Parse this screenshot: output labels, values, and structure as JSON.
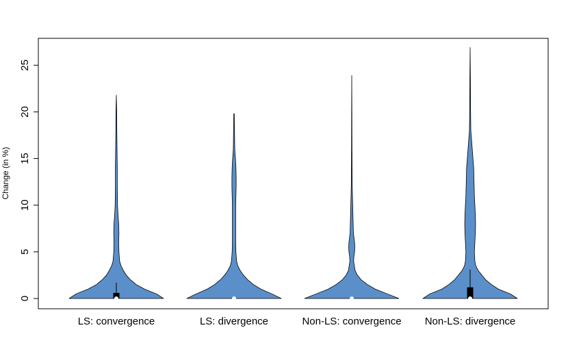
{
  "chart_data": {
    "type": "violin",
    "ylabel": "Change (in %)",
    "ylim": [
      -1,
      28
    ],
    "yticks": [
      "0",
      "5",
      "10",
      "15",
      "20",
      "25"
    ],
    "categories": [
      "LS: convergence",
      "LS: divergence",
      "Non-LS: convergence",
      "Non-LS: divergence"
    ],
    "fill_color": "#5b8fc9",
    "series": [
      {
        "category": "LS: convergence",
        "max": 21.8,
        "median": 0,
        "q1": 0,
        "q3": 0.6,
        "whisker_high": 1.7,
        "density": [
          [
            0,
            1
          ],
          [
            0.5,
            0.85
          ],
          [
            1,
            0.6
          ],
          [
            1.5,
            0.42
          ],
          [
            2,
            0.3
          ],
          [
            2.5,
            0.21
          ],
          [
            3,
            0.15
          ],
          [
            3.5,
            0.1
          ],
          [
            4,
            0.07
          ],
          [
            5,
            0.055
          ],
          [
            6,
            0.05
          ],
          [
            7,
            0.055
          ],
          [
            8,
            0.05
          ],
          [
            9,
            0.035
          ],
          [
            10,
            0.025
          ],
          [
            12,
            0.02
          ],
          [
            14,
            0.02
          ],
          [
            16,
            0.015
          ],
          [
            18,
            0.01
          ],
          [
            20,
            0.008
          ],
          [
            21.8,
            0
          ]
        ]
      },
      {
        "category": "LS: divergence",
        "max": 19.8,
        "median": 0,
        "q1": 0,
        "q3": 0.05,
        "whisker_high": 0.1,
        "density": [
          [
            0,
            1
          ],
          [
            0.5,
            0.8
          ],
          [
            1,
            0.57
          ],
          [
            1.5,
            0.41
          ],
          [
            2,
            0.29
          ],
          [
            2.5,
            0.2
          ],
          [
            3,
            0.13
          ],
          [
            3.5,
            0.08
          ],
          [
            4,
            0.055
          ],
          [
            5,
            0.04
          ],
          [
            6,
            0.035
          ],
          [
            7,
            0.035
          ],
          [
            8,
            0.035
          ],
          [
            10,
            0.035
          ],
          [
            12,
            0.045
          ],
          [
            13,
            0.045
          ],
          [
            14,
            0.04
          ],
          [
            15,
            0.03
          ],
          [
            16,
            0.015
          ],
          [
            18,
            0.01
          ],
          [
            19.8,
            0.005
          ]
        ]
      },
      {
        "category": "Non-LS: convergence",
        "max": 23.9,
        "median": 0,
        "q1": 0,
        "q3": 0.05,
        "whisker_high": 0.1,
        "density": [
          [
            0,
            1
          ],
          [
            0.5,
            0.75
          ],
          [
            1,
            0.5
          ],
          [
            1.5,
            0.33
          ],
          [
            2,
            0.2
          ],
          [
            2.5,
            0.12
          ],
          [
            3,
            0.07
          ],
          [
            4,
            0.04
          ],
          [
            4.5,
            0.045
          ],
          [
            5,
            0.06
          ],
          [
            5.5,
            0.065
          ],
          [
            6,
            0.06
          ],
          [
            7,
            0.035
          ],
          [
            8,
            0.03
          ],
          [
            10,
            0.02
          ],
          [
            12,
            0.01
          ],
          [
            14,
            0.008
          ],
          [
            16,
            0.005
          ],
          [
            20,
            0.003
          ],
          [
            23.9,
            0
          ]
        ]
      },
      {
        "category": "Non-LS: divergence",
        "max": 26.9,
        "median": 0,
        "q1": 0,
        "q3": 1.2,
        "whisker_high": 3.1,
        "density": [
          [
            0,
            1
          ],
          [
            0.5,
            0.85
          ],
          [
            1,
            0.6
          ],
          [
            1.5,
            0.45
          ],
          [
            2,
            0.33
          ],
          [
            2.5,
            0.25
          ],
          [
            3,
            0.17
          ],
          [
            3.5,
            0.12
          ],
          [
            4,
            0.1
          ],
          [
            5,
            0.09
          ],
          [
            6,
            0.1
          ],
          [
            7,
            0.11
          ],
          [
            8,
            0.115
          ],
          [
            9,
            0.11
          ],
          [
            10,
            0.1
          ],
          [
            11,
            0.09
          ],
          [
            12,
            0.085
          ],
          [
            14,
            0.075
          ],
          [
            16,
            0.045
          ],
          [
            18,
            0.015
          ],
          [
            20,
            0.01
          ],
          [
            22,
            0.008
          ],
          [
            24,
            0.005
          ],
          [
            26.9,
            0
          ]
        ]
      }
    ]
  }
}
